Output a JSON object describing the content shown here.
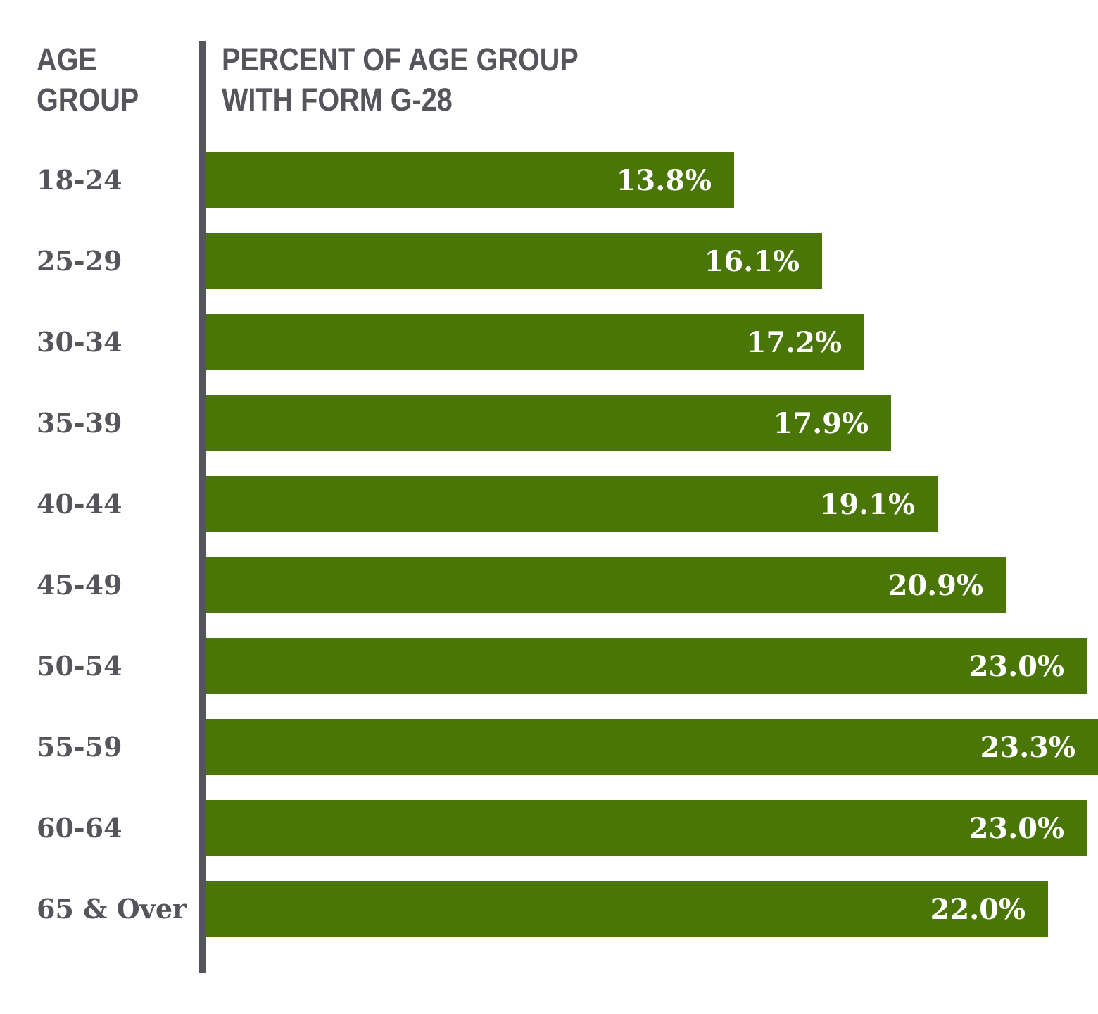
{
  "header": {
    "left_label": "AGE\nGROUP",
    "right_label": "PERCENT OF AGE GROUP\nWITH FORM G-28"
  },
  "colors": {
    "bar_green": "#4A7608",
    "axis_gray": "#55565B",
    "value_text": "#FFFFFF"
  },
  "chart_data": {
    "type": "bar",
    "orientation": "horizontal",
    "title": "PERCENT OF AGE GROUP WITH FORM G-28",
    "ylabel": "AGE GROUP",
    "xlabel": "",
    "categories": [
      "18-24",
      "25-29",
      "30-34",
      "35-39",
      "40-44",
      "45-49",
      "50-54",
      "55-59",
      "60-64",
      "65 & Over"
    ],
    "values": [
      13.8,
      16.1,
      17.2,
      17.9,
      19.1,
      20.9,
      23.0,
      23.3,
      23.0,
      22.0
    ],
    "value_labels": [
      "13.8%",
      "16.1%",
      "17.2%",
      "17.9%",
      "19.1%",
      "20.9%",
      "23.0%",
      "23.3%",
      "23.0%",
      "22.0%"
    ],
    "xlim": [
      0,
      23.3
    ],
    "grid": false,
    "legend": null,
    "value_label_position": "inside-end"
  }
}
